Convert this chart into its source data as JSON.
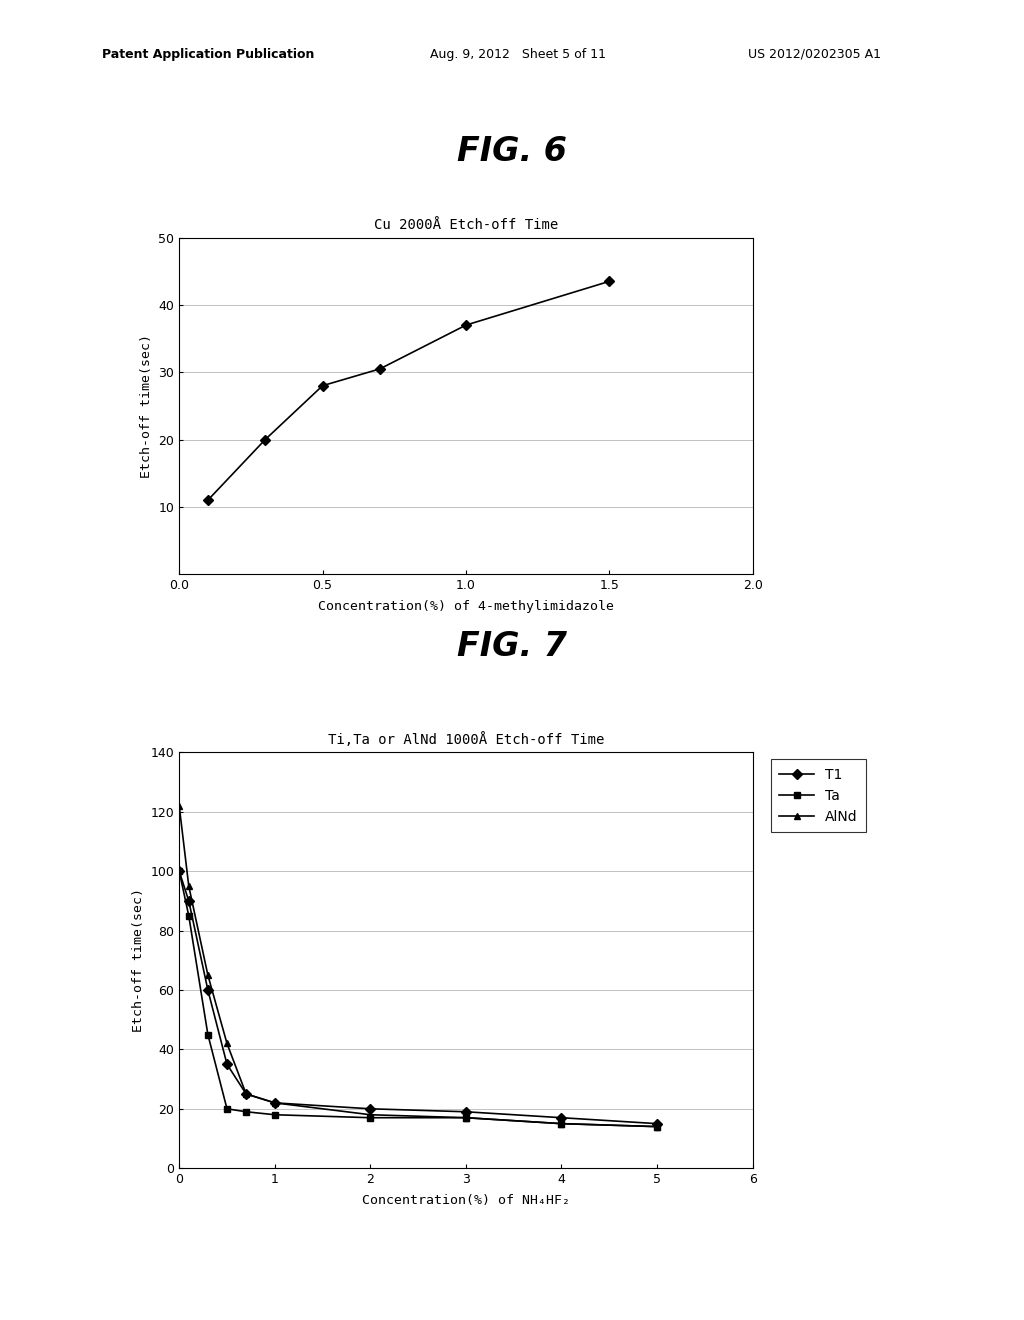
{
  "fig6": {
    "title": "Cu 2000Å Etch-off Time",
    "xlabel": "Concentration(%) of 4-methylimidazole",
    "ylabel": "Etch-off time(sec)",
    "x": [
      0.1,
      0.3,
      0.5,
      0.7,
      1.0,
      1.5
    ],
    "y": [
      11,
      20,
      28,
      30.5,
      37,
      43.5
    ],
    "xlim": [
      0,
      2
    ],
    "ylim": [
      0,
      50
    ],
    "xticks": [
      0,
      0.5,
      1,
      1.5,
      2
    ],
    "yticks": [
      10,
      20,
      30,
      40,
      50
    ],
    "color": "#000000",
    "marker": "D",
    "markersize": 5,
    "linewidth": 1.2
  },
  "fig7": {
    "title": "Ti,Ta or AlNd 1000Å Etch-off Time",
    "xlabel": "Concentration(%) of NH₄HF₂",
    "ylabel": "Etch-off time(sec)",
    "Ti_x": [
      0.0,
      0.1,
      0.3,
      0.5,
      0.7,
      1.0,
      2.0,
      3.0,
      4.0,
      5.0
    ],
    "Ti_y": [
      100,
      90,
      60,
      35,
      25,
      22,
      20,
      19,
      17,
      15
    ],
    "Ta_x": [
      0.0,
      0.1,
      0.3,
      0.5,
      0.7,
      1.0,
      2.0,
      3.0,
      4.0,
      5.0
    ],
    "Ta_y": [
      100,
      85,
      45,
      20,
      19,
      18,
      17,
      17,
      15,
      14
    ],
    "AlNd_x": [
      0.0,
      0.1,
      0.3,
      0.5,
      0.7,
      1.0,
      2.0,
      3.0,
      4.0,
      5.0
    ],
    "AlNd_y": [
      122,
      95,
      65,
      42,
      25,
      22,
      18,
      17,
      15,
      14
    ],
    "xlim": [
      0,
      6
    ],
    "ylim": [
      0,
      140
    ],
    "xticks": [
      0,
      1,
      2,
      3,
      4,
      5,
      6
    ],
    "yticks": [
      0,
      20,
      40,
      60,
      80,
      100,
      120,
      140
    ],
    "legend_labels": [
      "T1",
      "Ta",
      "AlNd"
    ],
    "color_Ti": "#000000",
    "color_Ta": "#000000",
    "color_AlNd": "#000000",
    "marker_Ti": "D",
    "marker_Ta": "s",
    "marker_AlNd": "^",
    "markersize": 5,
    "linewidth": 1.2
  },
  "header_left": "Patent Application Publication",
  "header_mid": "Aug. 9, 2012   Sheet 5 of 11",
  "header_right": "US 2012/0202305 A1",
  "fig6_label": "FIG. 6",
  "fig7_label": "FIG. 7",
  "background_color": "#ffffff",
  "text_color": "#000000"
}
